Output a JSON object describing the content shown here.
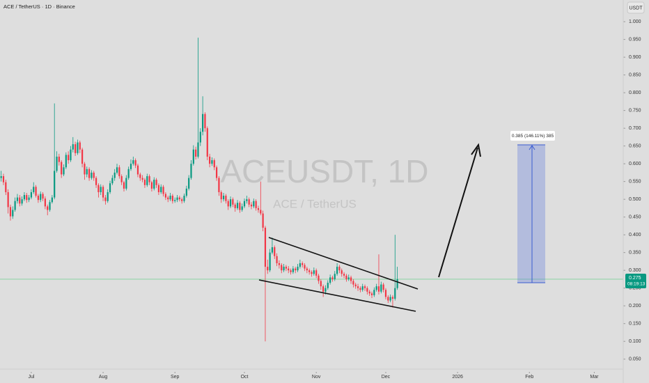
{
  "chart_data": {
    "type": "candlestick",
    "symbol_label": "ACE / TetherUS · 1D · Binance",
    "watermark": "ACEUSDT, 1D",
    "watermark_sub": "ACE / TetherUS",
    "currency": "USDT",
    "last_price": 0.275,
    "countdown": "08:19:13",
    "measure_label": "0.385 (146.11%) 385",
    "up_color": "#089981",
    "down_color": "#f23645",
    "xlim": [
      -13.5,
      255.5
    ],
    "ylim": [
      0.022,
      1.061
    ],
    "xticks": [
      {
        "value": 0,
        "label": "Jul"
      },
      {
        "value": 31,
        "label": "Aug"
      },
      {
        "value": 62,
        "label": "Sep"
      },
      {
        "value": 92,
        "label": "Oct"
      },
      {
        "value": 123,
        "label": "Nov"
      },
      {
        "value": 153,
        "label": "Dec"
      },
      {
        "value": 184,
        "label": "2026"
      },
      {
        "value": 215,
        "label": "Feb"
      },
      {
        "value": 243,
        "label": "Mar"
      }
    ],
    "yticks": [
      {
        "value": 0.05,
        "label": "0.050"
      },
      {
        "value": 0.1,
        "label": "0.100"
      },
      {
        "value": 0.15,
        "label": "0.150"
      },
      {
        "value": 0.2,
        "label": "0.200"
      },
      {
        "value": 0.25,
        "label": "0.250"
      },
      {
        "value": 0.3,
        "label": "0.300"
      },
      {
        "value": 0.35,
        "label": "0.350"
      },
      {
        "value": 0.4,
        "label": "0.400"
      },
      {
        "value": 0.45,
        "label": "0.450"
      },
      {
        "value": 0.5,
        "label": "0.500"
      },
      {
        "value": 0.55,
        "label": "0.550"
      },
      {
        "value": 0.6,
        "label": "0.600"
      },
      {
        "value": 0.65,
        "label": "0.650"
      },
      {
        "value": 0.7,
        "label": "0.700"
      },
      {
        "value": 0.75,
        "label": "0.750"
      },
      {
        "value": 0.8,
        "label": "0.800"
      },
      {
        "value": 0.85,
        "label": "0.850"
      },
      {
        "value": 0.9,
        "label": "0.900"
      },
      {
        "value": 0.95,
        "label": "0.950"
      },
      {
        "value": 1.0,
        "label": "1.000"
      }
    ],
    "x": [
      -13,
      -12,
      -11,
      -10,
      -9,
      -8,
      -7,
      -6,
      -5,
      -4,
      -3,
      -2,
      -1,
      0,
      1,
      2,
      3,
      4,
      5,
      6,
      7,
      8,
      9,
      10,
      11,
      12,
      13,
      14,
      15,
      16,
      17,
      18,
      19,
      20,
      21,
      22,
      23,
      24,
      25,
      26,
      27,
      28,
      29,
      30,
      31,
      32,
      33,
      34,
      35,
      36,
      37,
      38,
      39,
      40,
      41,
      42,
      43,
      44,
      45,
      46,
      47,
      48,
      49,
      50,
      51,
      52,
      53,
      54,
      55,
      56,
      57,
      58,
      59,
      60,
      61,
      62,
      63,
      64,
      65,
      66,
      67,
      68,
      69,
      70,
      71,
      72,
      73,
      74,
      75,
      76,
      77,
      78,
      79,
      80,
      81,
      82,
      83,
      84,
      85,
      86,
      87,
      88,
      89,
      90,
      91,
      92,
      93,
      94,
      95,
      96,
      97,
      98,
      99,
      100,
      101,
      102,
      103,
      104,
      105,
      106,
      107,
      108,
      109,
      110,
      111,
      112,
      113,
      114,
      115,
      116,
      117,
      118,
      119,
      120,
      121,
      122,
      123,
      124,
      125,
      126,
      127,
      128,
      129,
      130,
      131,
      132,
      133,
      134,
      135,
      136,
      137,
      138,
      139,
      140,
      141,
      142,
      143,
      144,
      145,
      146,
      147,
      148,
      149,
      150,
      151,
      152,
      153,
      154,
      155,
      156,
      157,
      158
    ],
    "open": [
      0.56,
      0.565,
      0.548,
      0.52,
      0.478,
      0.452,
      0.47,
      0.495,
      0.505,
      0.488,
      0.5,
      0.512,
      0.498,
      0.505,
      0.52,
      0.535,
      0.51,
      0.498,
      0.515,
      0.502,
      0.48,
      0.47,
      0.492,
      0.505,
      0.58,
      0.62,
      0.605,
      0.57,
      0.59,
      0.625,
      0.61,
      0.64,
      0.655,
      0.63,
      0.66,
      0.64,
      0.6,
      0.57,
      0.585,
      0.56,
      0.575,
      0.56,
      0.54,
      0.52,
      0.535,
      0.505,
      0.495,
      0.52,
      0.545,
      0.56,
      0.575,
      0.59,
      0.565,
      0.548,
      0.53,
      0.56,
      0.585,
      0.6,
      0.61,
      0.595,
      0.57,
      0.56,
      0.555,
      0.54,
      0.565,
      0.548,
      0.53,
      0.555,
      0.54,
      0.52,
      0.535,
      0.515,
      0.505,
      0.5,
      0.51,
      0.495,
      0.498,
      0.505,
      0.5,
      0.495,
      0.51,
      0.53,
      0.56,
      0.6,
      0.64,
      0.62,
      0.66,
      0.69,
      0.74,
      0.7,
      0.62,
      0.6,
      0.61,
      0.59,
      0.56,
      0.52,
      0.5,
      0.51,
      0.495,
      0.48,
      0.5,
      0.485,
      0.475,
      0.49,
      0.47,
      0.48,
      0.495,
      0.5,
      0.485,
      0.48,
      0.495,
      0.475,
      0.47,
      0.46,
      0.42,
      0.31,
      0.3,
      0.35,
      0.365,
      0.34,
      0.32,
      0.315,
      0.3,
      0.31,
      0.305,
      0.3,
      0.295,
      0.305,
      0.3,
      0.31,
      0.32,
      0.315,
      0.305,
      0.3,
      0.295,
      0.29,
      0.3,
      0.285,
      0.27,
      0.255,
      0.24,
      0.25,
      0.265,
      0.28,
      0.275,
      0.29,
      0.31,
      0.3,
      0.29,
      0.285,
      0.275,
      0.28,
      0.27,
      0.26,
      0.255,
      0.25,
      0.245,
      0.255,
      0.25,
      0.24,
      0.235,
      0.23,
      0.245,
      0.255,
      0.24,
      0.26,
      0.245,
      0.225,
      0.215,
      0.225,
      0.22,
      0.25
    ],
    "high": [
      0.58,
      0.572,
      0.555,
      0.528,
      0.485,
      0.48,
      0.505,
      0.515,
      0.512,
      0.508,
      0.52,
      0.518,
      0.512,
      0.528,
      0.548,
      0.54,
      0.515,
      0.522,
      0.52,
      0.508,
      0.485,
      0.498,
      0.512,
      0.77,
      0.635,
      0.628,
      0.61,
      0.598,
      0.632,
      0.635,
      0.65,
      0.675,
      0.662,
      0.668,
      0.665,
      0.645,
      0.605,
      0.592,
      0.59,
      0.582,
      0.58,
      0.565,
      0.545,
      0.542,
      0.54,
      0.512,
      0.528,
      0.552,
      0.568,
      0.585,
      0.6,
      0.596,
      0.57,
      0.552,
      0.568,
      0.592,
      0.612,
      0.62,
      0.615,
      0.6,
      0.575,
      0.568,
      0.56,
      0.572,
      0.57,
      0.552,
      0.562,
      0.56,
      0.545,
      0.542,
      0.54,
      0.52,
      0.51,
      0.518,
      0.515,
      0.505,
      0.512,
      0.51,
      0.505,
      0.516,
      0.538,
      0.568,
      0.61,
      0.652,
      0.648,
      0.955,
      0.7,
      0.79,
      0.745,
      0.705,
      0.628,
      0.618,
      0.615,
      0.595,
      0.565,
      0.525,
      0.518,
      0.515,
      0.5,
      0.508,
      0.505,
      0.49,
      0.498,
      0.495,
      0.488,
      0.502,
      0.51,
      0.505,
      0.492,
      0.502,
      0.5,
      0.482,
      0.55,
      0.468,
      0.425,
      0.33,
      0.36,
      0.392,
      0.37,
      0.348,
      0.328,
      0.32,
      0.318,
      0.315,
      0.312,
      0.305,
      0.312,
      0.31,
      0.318,
      0.33,
      0.325,
      0.32,
      0.31,
      0.305,
      0.3,
      0.308,
      0.305,
      0.29,
      0.275,
      0.26,
      0.258,
      0.272,
      0.288,
      0.285,
      0.298,
      0.32,
      0.315,
      0.305,
      0.295,
      0.29,
      0.288,
      0.285,
      0.275,
      0.265,
      0.262,
      0.255,
      0.262,
      0.26,
      0.255,
      0.245,
      0.24,
      0.252,
      0.262,
      0.345,
      0.268,
      0.265,
      0.25,
      0.23,
      0.232,
      0.23,
      0.4,
      0.31
    ],
    "low": [
      0.55,
      0.54,
      0.512,
      0.46,
      0.44,
      0.445,
      0.465,
      0.488,
      0.48,
      0.482,
      0.495,
      0.49,
      0.492,
      0.5,
      0.515,
      0.505,
      0.49,
      0.492,
      0.495,
      0.472,
      0.455,
      0.465,
      0.488,
      0.5,
      0.575,
      0.595,
      0.56,
      0.565,
      0.585,
      0.6,
      0.605,
      0.632,
      0.622,
      0.625,
      0.63,
      0.59,
      0.555,
      0.562,
      0.552,
      0.555,
      0.552,
      0.532,
      0.505,
      0.512,
      0.495,
      0.485,
      0.49,
      0.515,
      0.54,
      0.552,
      0.57,
      0.558,
      0.54,
      0.522,
      0.525,
      0.555,
      0.58,
      0.595,
      0.588,
      0.562,
      0.552,
      0.548,
      0.532,
      0.535,
      0.54,
      0.522,
      0.525,
      0.532,
      0.512,
      0.515,
      0.508,
      0.498,
      0.492,
      0.495,
      0.488,
      0.49,
      0.492,
      0.494,
      0.488,
      0.49,
      0.505,
      0.525,
      0.555,
      0.595,
      0.612,
      0.615,
      0.65,
      0.68,
      0.69,
      0.61,
      0.59,
      0.594,
      0.582,
      0.552,
      0.51,
      0.49,
      0.494,
      0.488,
      0.47,
      0.475,
      0.478,
      0.465,
      0.47,
      0.462,
      0.465,
      0.475,
      0.488,
      0.478,
      0.472,
      0.475,
      0.468,
      0.462,
      0.455,
      0.41,
      0.1,
      0.29,
      0.295,
      0.345,
      0.332,
      0.312,
      0.305,
      0.292,
      0.295,
      0.298,
      0.292,
      0.288,
      0.29,
      0.292,
      0.295,
      0.305,
      0.308,
      0.298,
      0.292,
      0.288,
      0.282,
      0.285,
      0.278,
      0.262,
      0.245,
      0.225,
      0.232,
      0.245,
      0.26,
      0.268,
      0.27,
      0.285,
      0.292,
      0.282,
      0.278,
      0.268,
      0.27,
      0.262,
      0.252,
      0.248,
      0.242,
      0.238,
      0.24,
      0.242,
      0.232,
      0.228,
      0.222,
      0.225,
      0.24,
      0.232,
      0.235,
      0.238,
      0.218,
      0.208,
      0.21,
      0.195,
      0.215,
      0.245
    ],
    "close": [
      0.565,
      0.548,
      0.52,
      0.478,
      0.452,
      0.47,
      0.495,
      0.505,
      0.488,
      0.5,
      0.512,
      0.498,
      0.505,
      0.52,
      0.535,
      0.51,
      0.498,
      0.515,
      0.502,
      0.48,
      0.47,
      0.492,
      0.505,
      0.58,
      0.62,
      0.605,
      0.57,
      0.59,
      0.625,
      0.61,
      0.64,
      0.655,
      0.63,
      0.66,
      0.64,
      0.6,
      0.57,
      0.585,
      0.56,
      0.575,
      0.56,
      0.54,
      0.52,
      0.535,
      0.505,
      0.495,
      0.52,
      0.545,
      0.56,
      0.575,
      0.59,
      0.565,
      0.548,
      0.53,
      0.56,
      0.585,
      0.6,
      0.61,
      0.595,
      0.57,
      0.56,
      0.555,
      0.54,
      0.565,
      0.548,
      0.53,
      0.555,
      0.54,
      0.52,
      0.535,
      0.515,
      0.505,
      0.5,
      0.51,
      0.495,
      0.498,
      0.505,
      0.5,
      0.495,
      0.51,
      0.53,
      0.56,
      0.6,
      0.64,
      0.62,
      0.66,
      0.69,
      0.74,
      0.7,
      0.62,
      0.6,
      0.61,
      0.59,
      0.56,
      0.52,
      0.5,
      0.51,
      0.495,
      0.48,
      0.5,
      0.485,
      0.475,
      0.49,
      0.47,
      0.48,
      0.495,
      0.5,
      0.485,
      0.48,
      0.495,
      0.475,
      0.47,
      0.46,
      0.42,
      0.31,
      0.3,
      0.35,
      0.365,
      0.34,
      0.32,
      0.315,
      0.3,
      0.31,
      0.305,
      0.3,
      0.295,
      0.305,
      0.3,
      0.31,
      0.32,
      0.315,
      0.305,
      0.3,
      0.295,
      0.29,
      0.3,
      0.285,
      0.27,
      0.255,
      0.24,
      0.25,
      0.265,
      0.28,
      0.275,
      0.29,
      0.31,
      0.3,
      0.29,
      0.285,
      0.275,
      0.28,
      0.27,
      0.26,
      0.255,
      0.25,
      0.245,
      0.255,
      0.25,
      0.24,
      0.235,
      0.23,
      0.245,
      0.255,
      0.24,
      0.26,
      0.245,
      0.225,
      0.215,
      0.225,
      0.22,
      0.25,
      0.275
    ]
  }
}
